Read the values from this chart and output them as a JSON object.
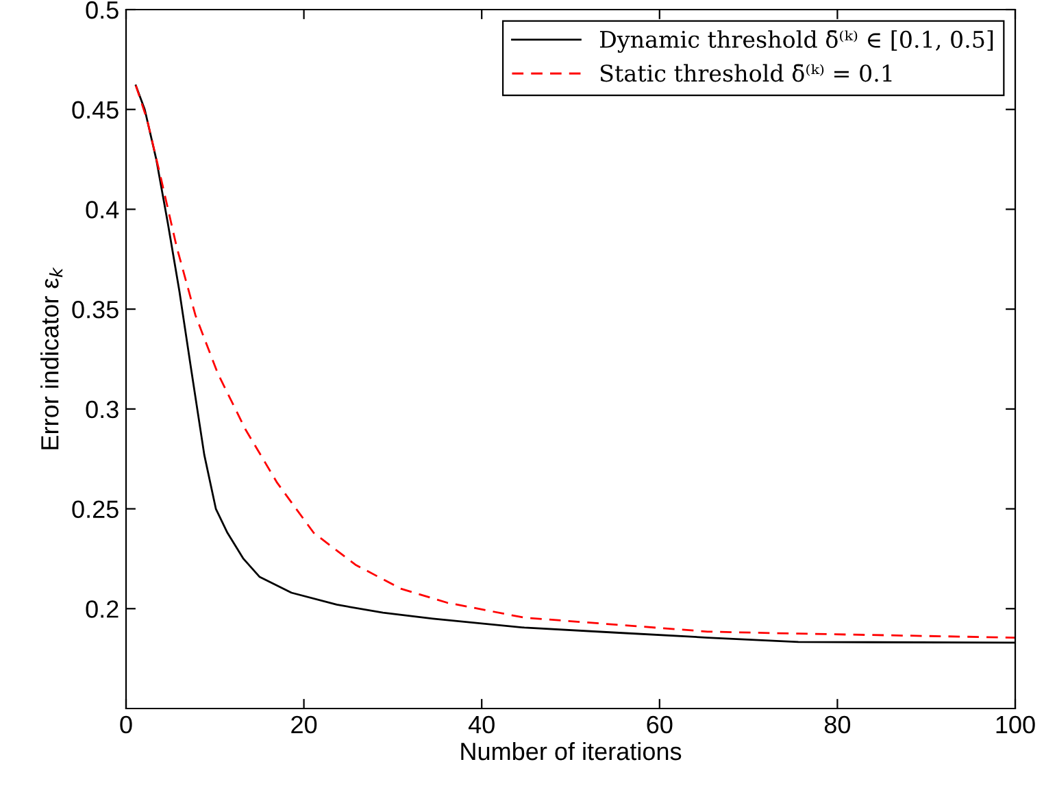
{
  "chart_data": {
    "type": "line",
    "xlabel": "Number of iterations",
    "ylabel": "Error indicator ε$_{k}$",
    "xlim": [
      0,
      100
    ],
    "ylim": [
      0.15,
      0.5
    ],
    "xticks": [
      0,
      20,
      40,
      60,
      80,
      100
    ],
    "yticks": [
      0.2,
      0.25,
      0.3,
      0.35,
      0.4,
      0.45,
      0.5
    ],
    "legend": "top right",
    "grid": false,
    "series": [
      {
        "name": "Dynamic threshold δ̄⁽ᵏ⁾ ∈ [0.1, 0.5]",
        "color": "#000000",
        "line_style": "solid",
        "x": [
          1.1,
          2.1,
          3.4,
          4.7,
          6.0,
          7.25,
          8.8,
          10.1,
          11.4,
          13.2,
          15.0,
          18.6,
          23.7,
          28.9,
          34.5,
          44.8,
          55.1,
          65.4,
          75.6,
          100
        ],
        "values": [
          0.462,
          0.45,
          0.425,
          0.393,
          0.359,
          0.322,
          0.277,
          0.25,
          0.238,
          0.225,
          0.216,
          0.208,
          0.202,
          0.198,
          0.195,
          0.1905,
          0.188,
          0.1855,
          0.1833,
          0.183
        ]
      },
      {
        "name": "Static threshold δ̄⁽ᵏ⁾ = 0.1",
        "color": "#ff0000",
        "line_style": "dashed",
        "x": [
          1.1,
          2.36,
          3.9,
          5.7,
          7.8,
          10.3,
          13.4,
          17.0,
          21.1,
          25.8,
          30.9,
          36.1,
          44.8,
          55.1,
          65.4,
          75.6,
          100
        ],
        "values": [
          0.462,
          0.445,
          0.416,
          0.381,
          0.347,
          0.318,
          0.29,
          0.263,
          0.238,
          0.222,
          0.21,
          0.203,
          0.1955,
          0.192,
          0.1885,
          0.1875,
          0.1855
        ]
      }
    ]
  }
}
